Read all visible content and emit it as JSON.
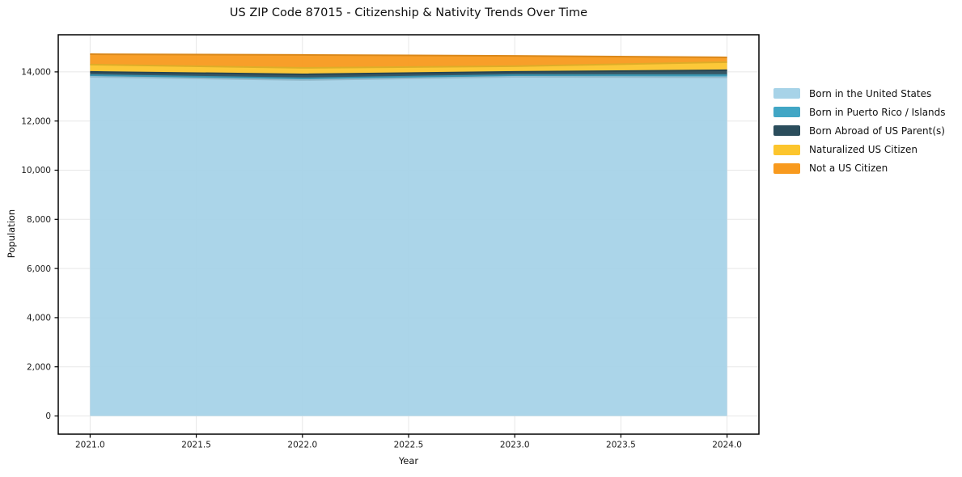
{
  "chart_data": {
    "type": "area",
    "stacked": true,
    "title": "US ZIP Code 87015 - Citizenship & Nativity Trends Over Time",
    "xlabel": "Year",
    "ylabel": "Population",
    "x": [
      2021,
      2022,
      2023,
      2024
    ],
    "series": [
      {
        "name": "Born in the United States",
        "color": "#A7D3E8",
        "values": [
          13800,
          13670,
          13800,
          13780
        ]
      },
      {
        "name": "Born in Puerto Rico / Islands",
        "color": "#41A6C5",
        "values": [
          70,
          70,
          70,
          95
        ]
      },
      {
        "name": "Born Abroad of US Parent(s)",
        "color": "#2B4D5C",
        "values": [
          130,
          160,
          130,
          190
        ]
      },
      {
        "name": "Naturalized US Citizen",
        "color": "#FCC52D",
        "values": [
          295,
          265,
          230,
          330
        ]
      },
      {
        "name": "Not a US Citizen",
        "color": "#F89A1E",
        "values": [
          425,
          525,
          420,
          195
        ]
      }
    ],
    "totals": [
      14720,
      14690,
      14650,
      14590
    ],
    "xticks": [
      2021.0,
      2021.5,
      2022.0,
      2022.5,
      2023.0,
      2023.5,
      2024.0
    ],
    "xtick_labels": [
      "2021.0",
      "2021.5",
      "2022.0",
      "2022.5",
      "2023.0",
      "2023.5",
      "2024.0"
    ],
    "yticks": [
      0,
      2000,
      4000,
      6000,
      8000,
      10000,
      12000,
      14000
    ],
    "ytick_labels": [
      "0",
      "2,000",
      "4,000",
      "6,000",
      "8,000",
      "10,000",
      "12,000",
      "14,000"
    ],
    "xlim": [
      2020.85,
      2024.15
    ],
    "ylim": [
      -740,
      15510
    ],
    "grid": true,
    "grid_color": "#e7e7e7",
    "spine_color": "#000000",
    "tick_label_color": "#1a1a1a",
    "legend_position": "right"
  }
}
